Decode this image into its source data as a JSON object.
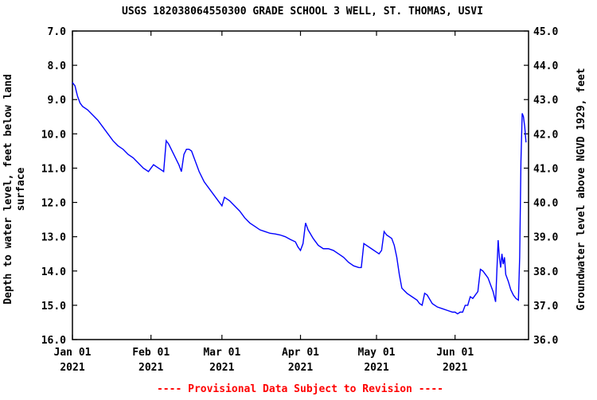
{
  "chart_data": {
    "type": "line",
    "title": "USGS 182038064550300 GRADE SCHOOL 3 WELL, ST. THOMAS, USVI",
    "ylabel_left": [
      "Depth to water level, feet below land",
      "surface"
    ],
    "ylabel_right": "Groundwater level above NGVD 1929, feet",
    "footer": "---- Provisional Data Subject to Revision ----",
    "x_ticks": [
      {
        "day": 0,
        "label1": "Jan 01",
        "label2": "2021"
      },
      {
        "day": 31,
        "label1": "Feb 01",
        "label2": "2021"
      },
      {
        "day": 59,
        "label1": "Mar 01",
        "label2": "2021"
      },
      {
        "day": 90,
        "label1": "Apr 01",
        "label2": "2021"
      },
      {
        "day": 120,
        "label1": "May 01",
        "label2": "2021"
      },
      {
        "day": 151,
        "label1": "Jun 01",
        "label2": "2021"
      }
    ],
    "xlim": [
      "2021-01-01",
      "2021-06-30"
    ],
    "ylim_left": [
      7.0,
      16.0
    ],
    "ylim_right": [
      36.0,
      45.0
    ],
    "y_ticks_left": [
      "7.0",
      "8.0",
      "9.0",
      "10.0",
      "11.0",
      "12.0",
      "13.0",
      "14.0",
      "15.0",
      "16.0"
    ],
    "y_ticks_right": [
      "45.0",
      "44.0",
      "43.0",
      "42.0",
      "41.0",
      "40.0",
      "39.0",
      "38.0",
      "37.0",
      "36.0"
    ],
    "grid": false,
    "series": [
      {
        "color": "#0000ff",
        "points": [
          [
            0,
            8.5
          ],
          [
            1,
            8.6
          ],
          [
            2,
            8.9
          ],
          [
            3,
            9.1
          ],
          [
            4,
            9.2
          ],
          [
            6,
            9.3
          ],
          [
            8,
            9.45
          ],
          [
            10,
            9.6
          ],
          [
            12,
            9.8
          ],
          [
            14,
            10.0
          ],
          [
            16,
            10.2
          ],
          [
            18,
            10.35
          ],
          [
            20,
            10.45
          ],
          [
            22,
            10.6
          ],
          [
            24,
            10.7
          ],
          [
            26,
            10.85
          ],
          [
            28,
            11.0
          ],
          [
            30,
            11.1
          ],
          [
            31,
            11.0
          ],
          [
            32,
            10.9
          ],
          [
            33,
            10.95
          ],
          [
            35,
            11.05
          ],
          [
            36,
            11.1
          ],
          [
            37,
            10.2
          ],
          [
            38,
            10.3
          ],
          [
            40,
            10.6
          ],
          [
            42,
            10.9
          ],
          [
            43,
            11.1
          ],
          [
            44,
            10.6
          ],
          [
            45,
            10.45
          ],
          [
            46,
            10.45
          ],
          [
            47,
            10.5
          ],
          [
            48,
            10.7
          ],
          [
            50,
            11.1
          ],
          [
            52,
            11.4
          ],
          [
            54,
            11.6
          ],
          [
            56,
            11.8
          ],
          [
            58,
            12.0
          ],
          [
            59,
            12.1
          ],
          [
            60,
            11.85
          ],
          [
            62,
            11.95
          ],
          [
            64,
            12.1
          ],
          [
            66,
            12.25
          ],
          [
            68,
            12.45
          ],
          [
            70,
            12.6
          ],
          [
            72,
            12.7
          ],
          [
            74,
            12.8
          ],
          [
            76,
            12.85
          ],
          [
            78,
            12.9
          ],
          [
            80,
            12.92
          ],
          [
            82,
            12.95
          ],
          [
            84,
            13.0
          ],
          [
            86,
            13.08
          ],
          [
            88,
            13.15
          ],
          [
            89,
            13.3
          ],
          [
            90,
            13.4
          ],
          [
            91,
            13.2
          ],
          [
            92,
            12.6
          ],
          [
            93,
            12.8
          ],
          [
            95,
            13.05
          ],
          [
            97,
            13.25
          ],
          [
            99,
            13.35
          ],
          [
            101,
            13.35
          ],
          [
            103,
            13.4
          ],
          [
            105,
            13.5
          ],
          [
            107,
            13.6
          ],
          [
            109,
            13.75
          ],
          [
            111,
            13.85
          ],
          [
            113,
            13.9
          ],
          [
            114,
            13.9
          ],
          [
            115,
            13.2
          ],
          [
            116,
            13.25
          ],
          [
            118,
            13.35
          ],
          [
            120,
            13.45
          ],
          [
            121,
            13.5
          ],
          [
            122,
            13.4
          ],
          [
            123,
            12.85
          ],
          [
            124,
            12.95
          ],
          [
            126,
            13.05
          ],
          [
            127,
            13.25
          ],
          [
            128,
            13.6
          ],
          [
            129,
            14.1
          ],
          [
            130,
            14.5
          ],
          [
            132,
            14.65
          ],
          [
            134,
            14.75
          ],
          [
            136,
            14.85
          ],
          [
            137,
            14.95
          ],
          [
            138,
            15.0
          ],
          [
            139,
            14.65
          ],
          [
            140,
            14.7
          ],
          [
            142,
            14.95
          ],
          [
            144,
            15.05
          ],
          [
            146,
            15.1
          ],
          [
            148,
            15.15
          ],
          [
            150,
            15.2
          ],
          [
            151,
            15.2
          ],
          [
            152,
            15.25
          ],
          [
            153,
            15.2
          ],
          [
            154,
            15.2
          ],
          [
            155,
            15.0
          ],
          [
            156,
            15.0
          ],
          [
            157,
            14.75
          ],
          [
            158,
            14.8
          ],
          [
            159,
            14.7
          ],
          [
            160,
            14.6
          ],
          [
            161,
            13.95
          ],
          [
            162,
            14.0
          ],
          [
            164,
            14.2
          ],
          [
            165,
            14.4
          ],
          [
            166,
            14.6
          ],
          [
            167,
            14.9
          ],
          [
            168,
            13.1
          ],
          [
            168.5,
            13.6
          ],
          [
            169,
            13.9
          ],
          [
            169.5,
            13.5
          ],
          [
            170,
            13.8
          ],
          [
            170.5,
            13.6
          ],
          [
            171,
            14.1
          ],
          [
            172,
            14.3
          ],
          [
            173,
            14.55
          ],
          [
            174,
            14.7
          ],
          [
            175,
            14.8
          ],
          [
            176,
            14.85
          ],
          [
            176.5,
            13.6
          ],
          [
            177,
            10.8
          ],
          [
            177.5,
            9.4
          ],
          [
            178,
            9.5
          ],
          [
            178.5,
            9.8
          ],
          [
            179,
            10.25
          ]
        ]
      }
    ]
  }
}
